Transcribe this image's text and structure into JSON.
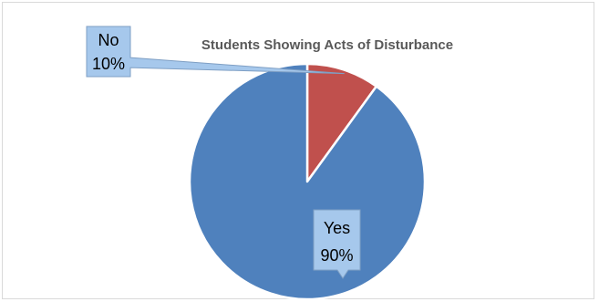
{
  "chart_data": {
    "type": "pie",
    "title": "Students Showing Acts of Disturbance",
    "slices": [
      {
        "category": "No",
        "value": 10,
        "label": "10%",
        "color": "#c0504d"
      },
      {
        "category": "Yes",
        "value": 90,
        "label": "90%",
        "color": "#4f81bd"
      }
    ],
    "legend": "none",
    "data_label_style": "callout",
    "callout_fill": "#a6c8ec"
  }
}
